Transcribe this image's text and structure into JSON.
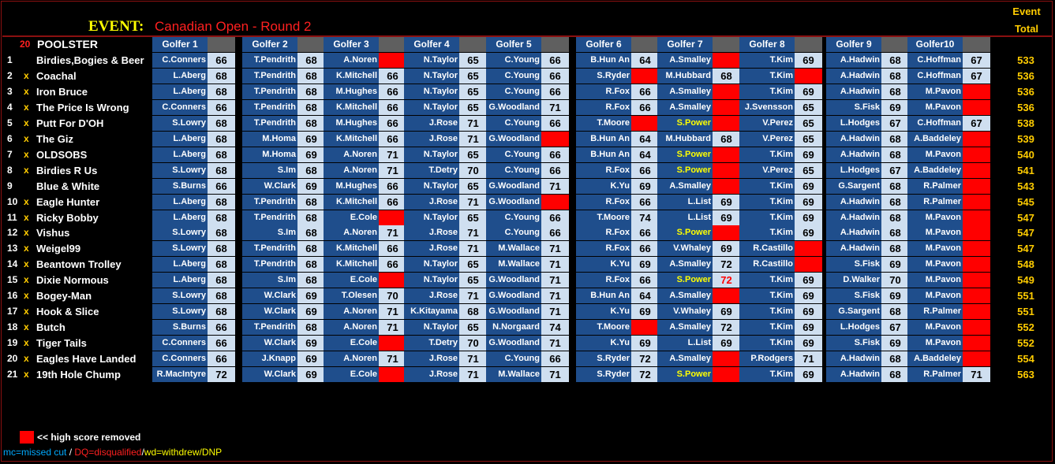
{
  "event": {
    "label": "EVENT:",
    "name": "Canadian Open - Round 2"
  },
  "total_header": {
    "line1": "Event",
    "line2": "Total"
  },
  "count": "20",
  "poolster_header": "POOLSTER",
  "golfer_headers": [
    "Golfer 1",
    "Golfer 2",
    "Golfer 3",
    "Golfer 4",
    "Golfer 5",
    "Golfer 6",
    "Golfer 7",
    "Golfer 8",
    "Golfer 9",
    "Golfer10"
  ],
  "rows": [
    {
      "num": "1",
      "mark": "",
      "name": "Birdies,Bogies & Beer",
      "total": "533",
      "golfers": [
        [
          "C.Conners",
          "66"
        ],
        [
          "T.Pendrith",
          "68"
        ],
        [
          "A.Noren",
          "",
          1
        ],
        [
          "N.Taylor",
          "65"
        ],
        [
          "C.Young",
          "66"
        ],
        [
          "B.Hun An",
          "64"
        ],
        [
          "A.Smalley",
          "",
          1
        ],
        [
          "T.Kim",
          "69"
        ],
        [
          "A.Hadwin",
          "68"
        ],
        [
          "C.Hoffman",
          "67"
        ]
      ]
    },
    {
      "num": "2",
      "mark": "x",
      "name": "Coachal",
      "total": "536",
      "golfers": [
        [
          "L.Aberg",
          "68"
        ],
        [
          "T.Pendrith",
          "68"
        ],
        [
          "K.Mitchell",
          "66"
        ],
        [
          "N.Taylor",
          "65"
        ],
        [
          "C.Young",
          "66"
        ],
        [
          "S.Ryder",
          "",
          1
        ],
        [
          "M.Hubbard",
          "68"
        ],
        [
          "T.Kim",
          "",
          1
        ],
        [
          "A.Hadwin",
          "68"
        ],
        [
          "C.Hoffman",
          "67"
        ]
      ]
    },
    {
      "num": "3",
      "mark": "x",
      "name": "Iron Bruce",
      "total": "536",
      "golfers": [
        [
          "L.Aberg",
          "68"
        ],
        [
          "T.Pendrith",
          "68"
        ],
        [
          "M.Hughes",
          "66"
        ],
        [
          "N.Taylor",
          "65"
        ],
        [
          "C.Young",
          "66"
        ],
        [
          "R.Fox",
          "66"
        ],
        [
          "A.Smalley",
          "",
          1
        ],
        [
          "T.Kim",
          "69"
        ],
        [
          "A.Hadwin",
          "68"
        ],
        [
          "M.Pavon",
          "",
          1
        ]
      ]
    },
    {
      "num": "4",
      "mark": "x",
      "name": "The Price Is Wrong",
      "total": "536",
      "golfers": [
        [
          "C.Conners",
          "66"
        ],
        [
          "T.Pendrith",
          "68"
        ],
        [
          "K.Mitchell",
          "66"
        ],
        [
          "N.Taylor",
          "65"
        ],
        [
          "G.Woodland",
          "71"
        ],
        [
          "R.Fox",
          "66"
        ],
        [
          "A.Smalley",
          "",
          1
        ],
        [
          "J.Svensson",
          "65"
        ],
        [
          "S.Fisk",
          "69"
        ],
        [
          "M.Pavon",
          "",
          1
        ]
      ]
    },
    {
      "num": "5",
      "mark": "x",
      "name": "Putt For D'OH",
      "total": "538",
      "golfers": [
        [
          "S.Lowry",
          "68"
        ],
        [
          "T.Pendrith",
          "68"
        ],
        [
          "M.Hughes",
          "66"
        ],
        [
          "J.Rose",
          "71"
        ],
        [
          "C.Young",
          "66"
        ],
        [
          "T.Moore",
          "",
          1
        ],
        [
          "S.Power",
          "",
          1,
          "special"
        ],
        [
          "V.Perez",
          "65"
        ],
        [
          "L.Hodges",
          "67"
        ],
        [
          "C.Hoffman",
          "67"
        ]
      ]
    },
    {
      "num": "6",
      "mark": "x",
      "name": "The Giz",
      "total": "539",
      "golfers": [
        [
          "L.Aberg",
          "68"
        ],
        [
          "M.Homa",
          "69"
        ],
        [
          "K.Mitchell",
          "66"
        ],
        [
          "J.Rose",
          "71"
        ],
        [
          "G.Woodland",
          "",
          1
        ],
        [
          "B.Hun An",
          "64"
        ],
        [
          "M.Hubbard",
          "68"
        ],
        [
          "V.Perez",
          "65"
        ],
        [
          "A.Hadwin",
          "68"
        ],
        [
          "A.Baddeley",
          "",
          1
        ]
      ]
    },
    {
      "num": "7",
      "mark": "x",
      "name": "OLDSOBS",
      "total": "540",
      "golfers": [
        [
          "L.Aberg",
          "68"
        ],
        [
          "M.Homa",
          "69"
        ],
        [
          "A.Noren",
          "71"
        ],
        [
          "N.Taylor",
          "65"
        ],
        [
          "C.Young",
          "66"
        ],
        [
          "B.Hun An",
          "64"
        ],
        [
          "S.Power",
          "",
          1,
          "special"
        ],
        [
          "T.Kim",
          "69"
        ],
        [
          "A.Hadwin",
          "68"
        ],
        [
          "M.Pavon",
          "",
          1
        ]
      ]
    },
    {
      "num": "8",
      "mark": "x",
      "name": "Birdies R Us",
      "total": "541",
      "golfers": [
        [
          "S.Lowry",
          "68"
        ],
        [
          "S.Im",
          "68"
        ],
        [
          "A.Noren",
          "71"
        ],
        [
          "T.Detry",
          "70"
        ],
        [
          "C.Young",
          "66"
        ],
        [
          "R.Fox",
          "66"
        ],
        [
          "S.Power",
          "",
          1,
          "special"
        ],
        [
          "V.Perez",
          "65"
        ],
        [
          "L.Hodges",
          "67"
        ],
        [
          "A.Baddeley",
          "",
          1
        ]
      ]
    },
    {
      "num": "9",
      "mark": "",
      "name": "Blue & White",
      "total": "543",
      "golfers": [
        [
          "S.Burns",
          "66"
        ],
        [
          "W.Clark",
          "69"
        ],
        [
          "M.Hughes",
          "66"
        ],
        [
          "N.Taylor",
          "65"
        ],
        [
          "G.Woodland",
          "71"
        ],
        [
          "K.Yu",
          "69"
        ],
        [
          "A.Smalley",
          "",
          1
        ],
        [
          "T.Kim",
          "69"
        ],
        [
          "G.Sargent",
          "68"
        ],
        [
          "R.Palmer",
          "",
          1
        ]
      ]
    },
    {
      "num": "10",
      "mark": "x",
      "name": "Eagle Hunter",
      "total": "545",
      "golfers": [
        [
          "L.Aberg",
          "68"
        ],
        [
          "T.Pendrith",
          "68"
        ],
        [
          "K.Mitchell",
          "66"
        ],
        [
          "J.Rose",
          "71"
        ],
        [
          "G.Woodland",
          "",
          1
        ],
        [
          "R.Fox",
          "66"
        ],
        [
          "L.List",
          "69"
        ],
        [
          "T.Kim",
          "69"
        ],
        [
          "A.Hadwin",
          "68"
        ],
        [
          "R.Palmer",
          "",
          1
        ]
      ]
    },
    {
      "num": "11",
      "mark": "x",
      "name": "Ricky Bobby",
      "total": "547",
      "golfers": [
        [
          "L.Aberg",
          "68"
        ],
        [
          "T.Pendrith",
          "68"
        ],
        [
          "E.Cole",
          "",
          1
        ],
        [
          "N.Taylor",
          "65"
        ],
        [
          "C.Young",
          "66"
        ],
        [
          "T.Moore",
          "74"
        ],
        [
          "L.List",
          "69"
        ],
        [
          "T.Kim",
          "69"
        ],
        [
          "A.Hadwin",
          "68"
        ],
        [
          "M.Pavon",
          "",
          1
        ]
      ]
    },
    {
      "num": "12",
      "mark": "x",
      "name": "Vishus",
      "total": "547",
      "golfers": [
        [
          "S.Lowry",
          "68"
        ],
        [
          "S.Im",
          "68"
        ],
        [
          "A.Noren",
          "71"
        ],
        [
          "J.Rose",
          "71"
        ],
        [
          "C.Young",
          "66"
        ],
        [
          "R.Fox",
          "66"
        ],
        [
          "S.Power",
          "",
          1,
          "special"
        ],
        [
          "T.Kim",
          "69"
        ],
        [
          "A.Hadwin",
          "68"
        ],
        [
          "M.Pavon",
          "",
          1
        ]
      ]
    },
    {
      "num": "13",
      "mark": "x",
      "name": "Weigel99",
      "total": "547",
      "golfers": [
        [
          "S.Lowry",
          "68"
        ],
        [
          "T.Pendrith",
          "68"
        ],
        [
          "K.Mitchell",
          "66"
        ],
        [
          "J.Rose",
          "71"
        ],
        [
          "M.Wallace",
          "71"
        ],
        [
          "R.Fox",
          "66"
        ],
        [
          "V.Whaley",
          "69"
        ],
        [
          "R.Castillo",
          "",
          1
        ],
        [
          "A.Hadwin",
          "68"
        ],
        [
          "M.Pavon",
          "",
          1
        ]
      ]
    },
    {
      "num": "14",
      "mark": "x",
      "name": "Beantown Trolley",
      "total": "548",
      "golfers": [
        [
          "L.Aberg",
          "68"
        ],
        [
          "T.Pendrith",
          "68"
        ],
        [
          "K.Mitchell",
          "66"
        ],
        [
          "N.Taylor",
          "65"
        ],
        [
          "M.Wallace",
          "71"
        ],
        [
          "K.Yu",
          "69"
        ],
        [
          "A.Smalley",
          "72"
        ],
        [
          "R.Castillo",
          "",
          1
        ],
        [
          "S.Fisk",
          "69"
        ],
        [
          "M.Pavon",
          "",
          1
        ]
      ]
    },
    {
      "num": "15",
      "mark": "x",
      "name": "Dixie Normous",
      "total": "549",
      "golfers": [
        [
          "L.Aberg",
          "68"
        ],
        [
          "S.Im",
          "68"
        ],
        [
          "E.Cole",
          "",
          1
        ],
        [
          "N.Taylor",
          "65"
        ],
        [
          "G.Woodland",
          "71"
        ],
        [
          "R.Fox",
          "66"
        ],
        [
          "S.Power",
          "72",
          2,
          "special"
        ],
        [
          "T.Kim",
          "69"
        ],
        [
          "D.Walker",
          "70"
        ],
        [
          "M.Pavon",
          "",
          1
        ]
      ]
    },
    {
      "num": "16",
      "mark": "x",
      "name": "Bogey-Man",
      "total": "551",
      "golfers": [
        [
          "S.Lowry",
          "68"
        ],
        [
          "W.Clark",
          "69"
        ],
        [
          "T.Olesen",
          "70"
        ],
        [
          "J.Rose",
          "71"
        ],
        [
          "G.Woodland",
          "71"
        ],
        [
          "B.Hun An",
          "64"
        ],
        [
          "A.Smalley",
          "",
          1
        ],
        [
          "T.Kim",
          "69"
        ],
        [
          "S.Fisk",
          "69"
        ],
        [
          "M.Pavon",
          "",
          1
        ]
      ]
    },
    {
      "num": "17",
      "mark": "x",
      "name": "Hook & Slice",
      "total": "551",
      "golfers": [
        [
          "S.Lowry",
          "68"
        ],
        [
          "W.Clark",
          "69"
        ],
        [
          "A.Noren",
          "71"
        ],
        [
          "K.Kitayama",
          "68"
        ],
        [
          "G.Woodland",
          "71"
        ],
        [
          "K.Yu",
          "69"
        ],
        [
          "V.Whaley",
          "69"
        ],
        [
          "T.Kim",
          "69"
        ],
        [
          "G.Sargent",
          "68"
        ],
        [
          "R.Palmer",
          "",
          1
        ]
      ]
    },
    {
      "num": "18",
      "mark": "x",
      "name": "Butch",
      "total": "552",
      "golfers": [
        [
          "S.Burns",
          "66"
        ],
        [
          "T.Pendrith",
          "68"
        ],
        [
          "A.Noren",
          "71"
        ],
        [
          "N.Taylor",
          "65"
        ],
        [
          "N.Norgaard",
          "74"
        ],
        [
          "T.Moore",
          "",
          1
        ],
        [
          "A.Smalley",
          "72"
        ],
        [
          "T.Kim",
          "69"
        ],
        [
          "L.Hodges",
          "67"
        ],
        [
          "M.Pavon",
          "",
          1
        ]
      ]
    },
    {
      "num": "19",
      "mark": "x",
      "name": "Tiger Tails",
      "total": "552",
      "golfers": [
        [
          "C.Conners",
          "66"
        ],
        [
          "W.Clark",
          "69"
        ],
        [
          "E.Cole",
          "",
          1
        ],
        [
          "T.Detry",
          "70"
        ],
        [
          "G.Woodland",
          "71"
        ],
        [
          "K.Yu",
          "69"
        ],
        [
          "L.List",
          "69"
        ],
        [
          "T.Kim",
          "69"
        ],
        [
          "S.Fisk",
          "69"
        ],
        [
          "M.Pavon",
          "",
          1
        ]
      ]
    },
    {
      "num": "20",
      "mark": "x",
      "name": "Eagles Have Landed",
      "total": "554",
      "golfers": [
        [
          "C.Conners",
          "66"
        ],
        [
          "J.Knapp",
          "69"
        ],
        [
          "A.Noren",
          "71"
        ],
        [
          "J.Rose",
          "71"
        ],
        [
          "C.Young",
          "66"
        ],
        [
          "S.Ryder",
          "72"
        ],
        [
          "A.Smalley",
          "",
          1
        ],
        [
          "P.Rodgers",
          "71"
        ],
        [
          "A.Hadwin",
          "68"
        ],
        [
          "A.Baddeley",
          "",
          1
        ]
      ]
    },
    {
      "num": "21",
      "mark": "x",
      "name": "19th Hole Chump",
      "total": "563",
      "golfers": [
        [
          "R.MacIntyre",
          "72"
        ],
        [
          "W.Clark",
          "69"
        ],
        [
          "E.Cole",
          "",
          1
        ],
        [
          "J.Rose",
          "71"
        ],
        [
          "M.Wallace",
          "71"
        ],
        [
          "S.Ryder",
          "72"
        ],
        [
          "S.Power",
          "",
          1,
          "special"
        ],
        [
          "T.Kim",
          "69"
        ],
        [
          "A.Hadwin",
          "68"
        ],
        [
          "R.Palmer",
          "71"
        ]
      ]
    }
  ],
  "legend": {
    "removed_text": "<< high score removed",
    "mc": "mc=missed cut",
    "sep1": " / ",
    "dq": "DQ=disqualified",
    "sep2": "/",
    "wd": "wd=withdrew/DNP"
  },
  "colors": {
    "removed": "#ff0000",
    "name_bg": "#1f4e8c",
    "score_bg": "#cfdff0",
    "total": "#ffcc00",
    "frame": "#8b1010"
  }
}
